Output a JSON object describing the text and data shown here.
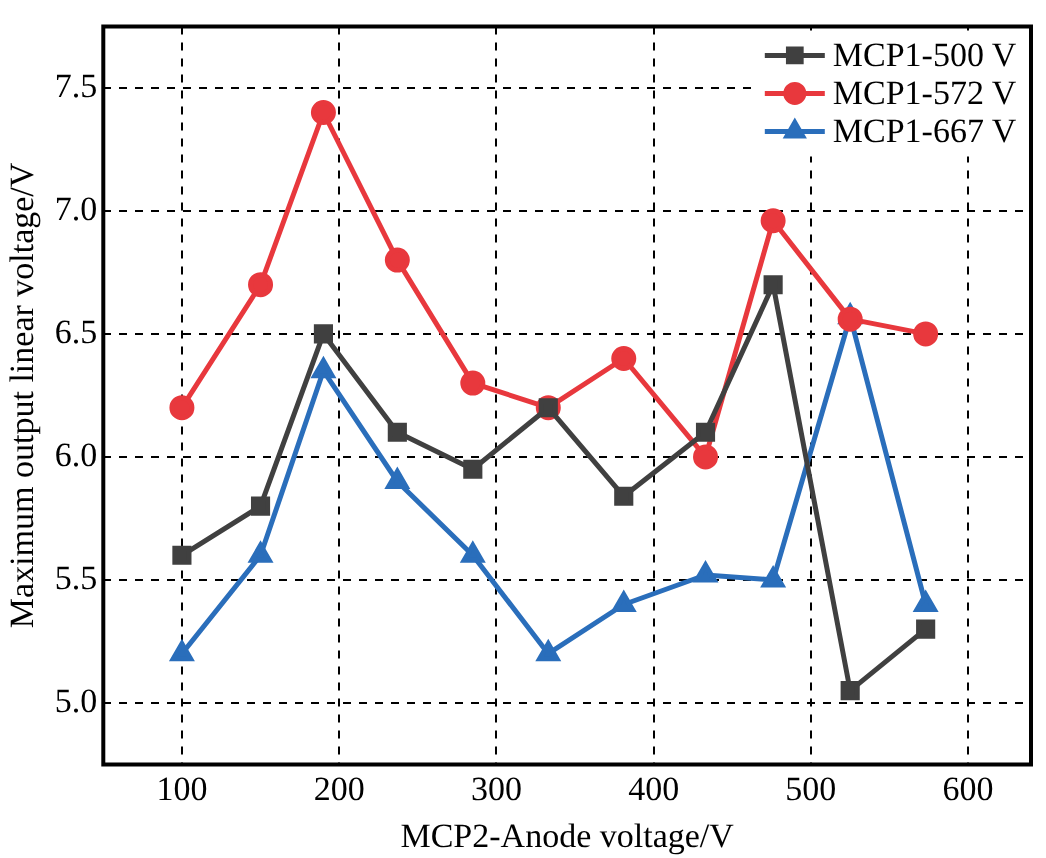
{
  "chart_data": {
    "type": "line",
    "xlabel": "MCP2-Anode voltage/V",
    "ylabel": "Maximum output linear voltage/V",
    "x": [
      100,
      150,
      190,
      237,
      285,
      333,
      381,
      433,
      476,
      525,
      573
    ],
    "series": [
      {
        "name": "MCP1-500 V",
        "color": "#404040",
        "marker": "square",
        "values": [
          5.6,
          5.8,
          6.5,
          6.1,
          5.95,
          6.2,
          5.84,
          6.1,
          6.7,
          5.05,
          5.3
        ]
      },
      {
        "name": "MCP1-572 V",
        "color": "#e8383d",
        "marker": "circle",
        "values": [
          6.2,
          6.7,
          7.4,
          6.8,
          6.3,
          6.2,
          6.4,
          6.0,
          6.96,
          6.56,
          6.5
        ]
      },
      {
        "name": "MCP1-667 V",
        "color": "#2a6ebb",
        "marker": "triangle",
        "values": [
          5.2,
          5.6,
          6.35,
          5.9,
          5.6,
          5.2,
          5.4,
          5.52,
          5.5,
          6.57,
          5.4
        ]
      }
    ],
    "xlim": [
      50,
      640
    ],
    "xticks": [
      100,
      200,
      300,
      400,
      500,
      600
    ],
    "ylim": [
      4.75,
      7.75
    ],
    "yticks": [
      {
        "value": 5,
        "label": "5.0"
      },
      {
        "value": 5.5,
        "label": "5.5"
      },
      {
        "value": 6,
        "label": "6.0"
      },
      {
        "value": 6.5,
        "label": "6.5"
      },
      {
        "value": 7,
        "label": "7.0"
      },
      {
        "value": 7.5,
        "label": "7.5"
      }
    ],
    "grid": true,
    "legend": "top right",
    "line_style": "solid"
  }
}
